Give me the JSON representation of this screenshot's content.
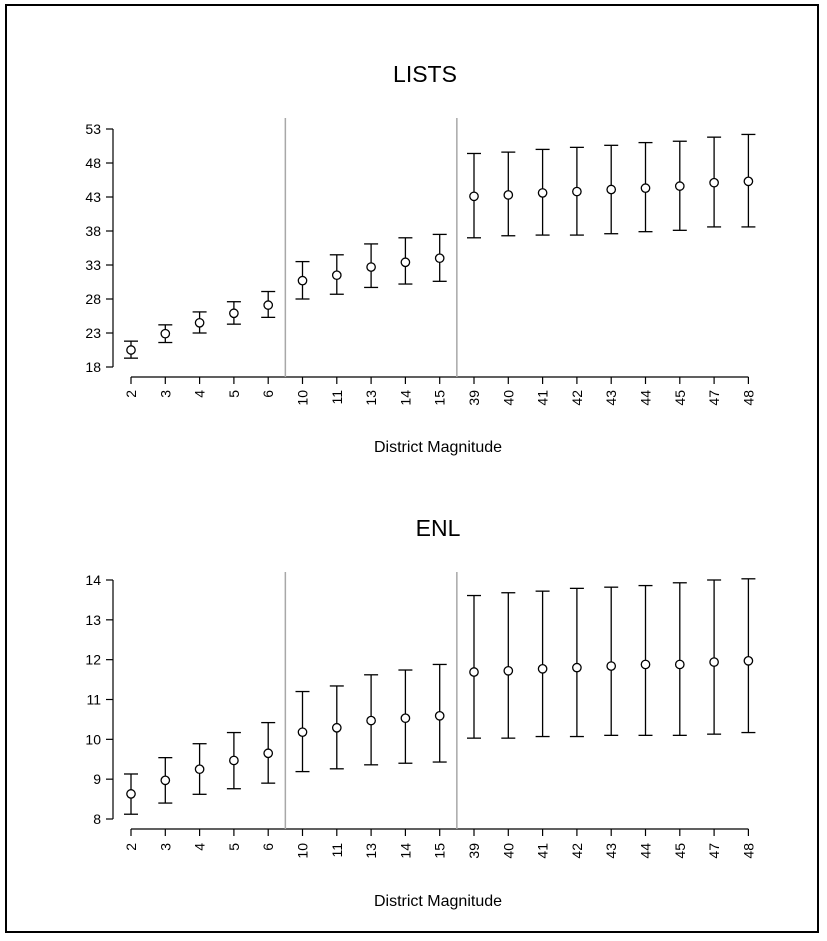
{
  "chart_data": [
    {
      "type": "scatter",
      "title": "LISTS",
      "xlabel": "District Magnitude",
      "ylabel": "",
      "categories": [
        "2",
        "3",
        "4",
        "5",
        "6",
        "10",
        "11",
        "13",
        "14",
        "15",
        "39",
        "40",
        "41",
        "42",
        "43",
        "44",
        "45",
        "47",
        "48"
      ],
      "values": [
        20.5,
        22.9,
        24.5,
        25.9,
        27.1,
        30.7,
        31.5,
        32.7,
        33.4,
        34.0,
        43.1,
        43.3,
        43.6,
        43.8,
        44.1,
        44.3,
        44.6,
        45.1,
        45.3
      ],
      "lower": [
        19.3,
        21.6,
        23.0,
        24.3,
        25.3,
        28.0,
        28.7,
        29.7,
        30.2,
        30.6,
        37.0,
        37.3,
        37.4,
        37.4,
        37.6,
        37.9,
        38.1,
        38.6,
        38.6
      ],
      "upper": [
        21.8,
        24.2,
        26.1,
        27.6,
        29.1,
        33.5,
        34.5,
        36.1,
        37.0,
        37.5,
        49.4,
        49.6,
        50.0,
        50.3,
        50.6,
        51.0,
        51.2,
        51.8,
        52.2
      ],
      "yticks": [
        18,
        23,
        28,
        33,
        38,
        43,
        48,
        53
      ],
      "ylim": [
        18,
        53
      ],
      "group_dividers_after_index": [
        4,
        9
      ],
      "grid": false,
      "error_bars": true,
      "color": "#000000"
    },
    {
      "type": "scatter",
      "title": "ENL",
      "xlabel": "District Magnitude",
      "ylabel": "",
      "categories": [
        "2",
        "3",
        "4",
        "5",
        "6",
        "10",
        "11",
        "13",
        "14",
        "15",
        "39",
        "40",
        "41",
        "42",
        "43",
        "44",
        "45",
        "47",
        "48"
      ],
      "values": [
        8.63,
        8.97,
        9.25,
        9.47,
        9.65,
        10.18,
        10.29,
        10.47,
        10.53,
        10.59,
        11.69,
        11.72,
        11.77,
        11.8,
        11.84,
        11.88,
        11.88,
        11.94,
        11.97
      ],
      "lower": [
        8.12,
        8.4,
        8.62,
        8.76,
        8.9,
        9.19,
        9.26,
        9.36,
        9.4,
        9.43,
        10.03,
        10.03,
        10.07,
        10.07,
        10.1,
        10.1,
        10.1,
        10.13,
        10.17
      ],
      "upper": [
        9.13,
        9.54,
        9.89,
        10.17,
        10.42,
        11.2,
        11.34,
        11.62,
        11.74,
        11.88,
        13.61,
        13.68,
        13.72,
        13.79,
        13.82,
        13.86,
        13.93,
        14.0,
        14.03
      ],
      "yticks": [
        8,
        9,
        10,
        11,
        12,
        13,
        14
      ],
      "ylim": [
        8,
        14
      ],
      "group_dividers_after_index": [
        4,
        9
      ],
      "grid": false,
      "error_bars": true,
      "color": "#000000"
    }
  ]
}
